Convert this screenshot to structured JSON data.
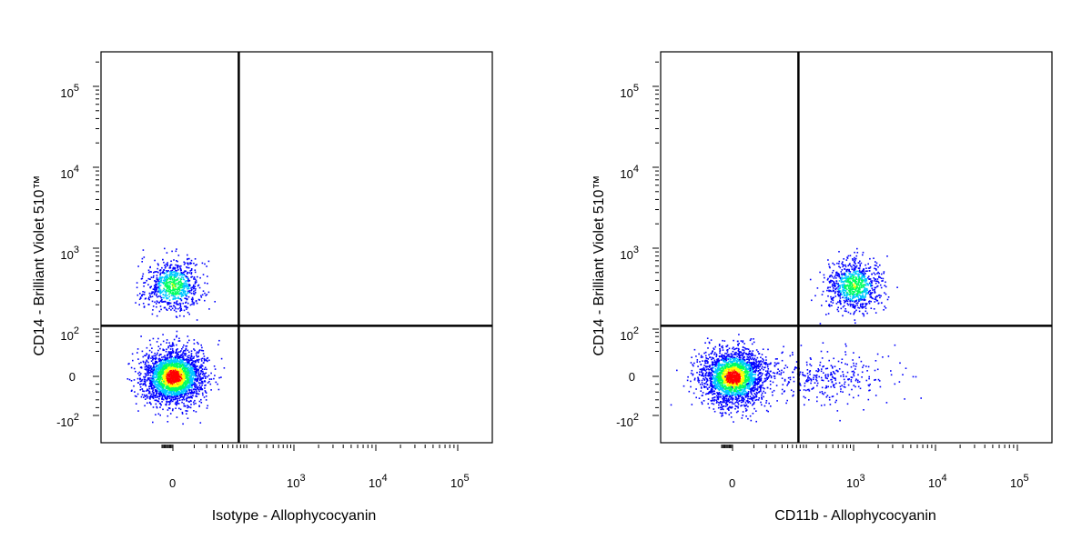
{
  "chart_data": [
    {
      "type": "scatter",
      "style": "density-colored",
      "xlabel": "Isotype - Allophycocyanin",
      "ylabel": "CD14 - Brilliant Violet 510™",
      "x_scale": "biexponential",
      "y_scale": "biexponential",
      "x_ticks": [
        {
          "value": 0,
          "base": "0",
          "exp": ""
        },
        {
          "value": 1000,
          "base": "10",
          "exp": "3"
        },
        {
          "value": 10000,
          "base": "10",
          "exp": "4"
        },
        {
          "value": 100000,
          "base": "10",
          "exp": "5"
        }
      ],
      "y_ticks": [
        {
          "value": -100,
          "base": "-10",
          "exp": "2"
        },
        {
          "value": 0,
          "base": "0",
          "exp": ""
        },
        {
          "value": 100,
          "base": "10",
          "exp": "2"
        },
        {
          "value": 1000,
          "base": "10",
          "exp": "3"
        },
        {
          "value": 10000,
          "base": "10",
          "exp": "4"
        },
        {
          "value": 100000,
          "base": "10",
          "exp": "5"
        }
      ],
      "gate": {
        "x": 150,
        "y": 110
      },
      "populations": [
        {
          "x_center": 0,
          "y_center": 0,
          "count": 2600,
          "density": "high"
        },
        {
          "x_center": 0,
          "y_center": 350,
          "count": 800,
          "density": "medium"
        }
      ],
      "colors": {
        "low": "#0000ff",
        "mid": "#00c8ff",
        "mid2": "#00ff60",
        "high2": "#ffff00",
        "high": "#ff0000"
      }
    },
    {
      "type": "scatter",
      "style": "density-colored",
      "xlabel": "CD11b - Allophycocyanin",
      "ylabel": "CD14 - Brilliant Violet 510™",
      "x_scale": "biexponential",
      "y_scale": "biexponential",
      "x_ticks": [
        {
          "value": 0,
          "base": "0",
          "exp": ""
        },
        {
          "value": 1000,
          "base": "10",
          "exp": "3"
        },
        {
          "value": 10000,
          "base": "10",
          "exp": "4"
        },
        {
          "value": 100000,
          "base": "10",
          "exp": "5"
        }
      ],
      "y_ticks": [
        {
          "value": -100,
          "base": "-10",
          "exp": "2"
        },
        {
          "value": 0,
          "base": "0",
          "exp": ""
        },
        {
          "value": 100,
          "base": "10",
          "exp": "2"
        },
        {
          "value": 1000,
          "base": "10",
          "exp": "3"
        },
        {
          "value": 10000,
          "base": "10",
          "exp": "4"
        },
        {
          "value": 100000,
          "base": "10",
          "exp": "5"
        }
      ],
      "gate": {
        "x": 150,
        "y": 110
      },
      "populations": [
        {
          "x_center": 0,
          "y_center": 0,
          "count": 2400,
          "density": "high"
        },
        {
          "x_center": 1000,
          "y_center": 350,
          "count": 900,
          "density": "medium"
        },
        {
          "x_center": 350,
          "y_center": 0,
          "count": 350,
          "density": "low"
        }
      ],
      "colors": {
        "low": "#0000ff",
        "mid": "#00c8ff",
        "mid2": "#00ff60",
        "high2": "#ffff00",
        "high": "#ff0000"
      }
    }
  ]
}
